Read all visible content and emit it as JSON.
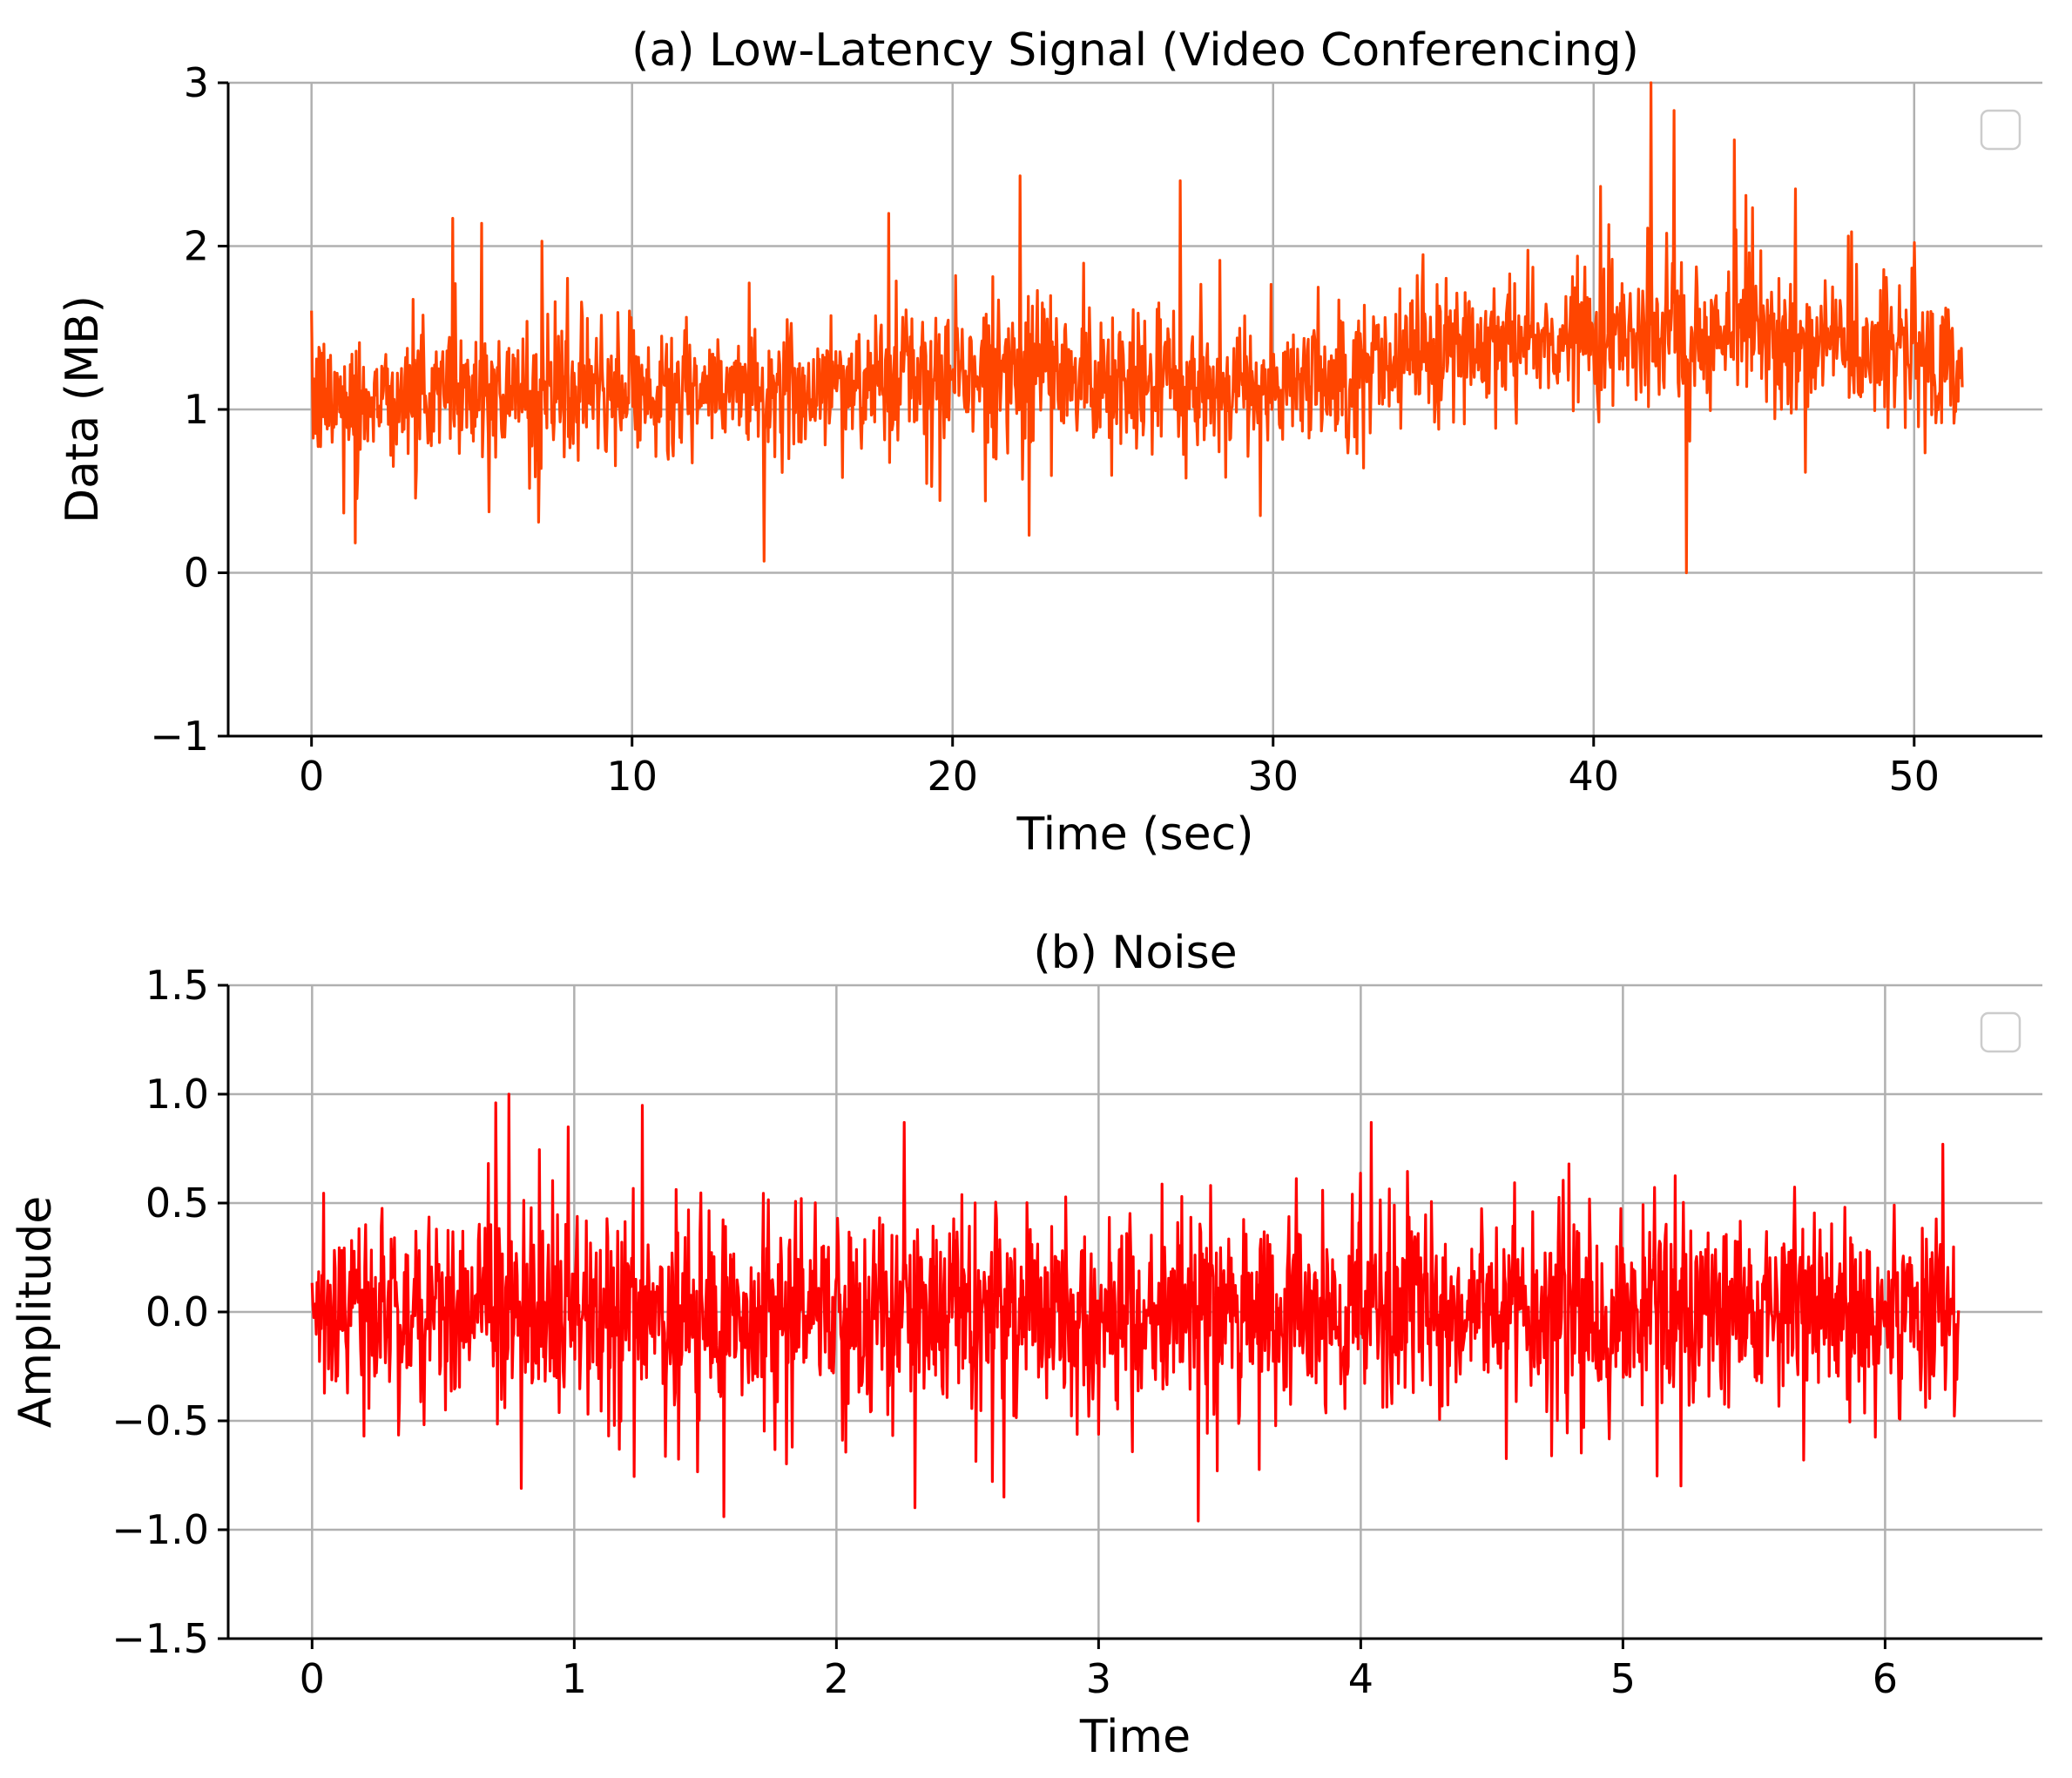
{
  "chart_data": [
    {
      "type": "line",
      "title": "(a) Low-Latency Signal (Video Conferencing)",
      "xlabel": "Time (sec)",
      "ylabel": "Data (MB)",
      "xlim": [
        -2.6,
        54.0
      ],
      "ylim": [
        -1,
        3
      ],
      "xticks": [
        0,
        10,
        20,
        30,
        40,
        50
      ],
      "yticks": [
        -1,
        0,
        1,
        2,
        3
      ],
      "xtick_labels": [
        "0",
        "10",
        "20",
        "30",
        "40",
        "50"
      ],
      "ytick_labels": [
        "−1",
        "0",
        "1",
        "2",
        "3"
      ],
      "grid": true,
      "legend": "top-right (empty)",
      "color": "#ff4500",
      "x_range": [
        0.0,
        51.5
      ],
      "series": [
        {
          "points": 2000,
          "trend_x": [
            0,
            5,
            10,
            15,
            20,
            25,
            30,
            35,
            40,
            45,
            51.5
          ],
          "trend_y": [
            1.05,
            1.12,
            1.08,
            1.12,
            1.22,
            1.18,
            1.12,
            1.38,
            1.48,
            1.45,
            1.3
          ],
          "noise_sd": 0.2,
          "spikes": [
            [
              4.4,
              2.17
            ],
            [
              5.3,
              2.14
            ],
            [
              7.2,
              2.03
            ],
            [
              18.0,
              2.2
            ],
            [
              22.1,
              2.43
            ],
            [
              22.4,
              0.23
            ],
            [
              27.1,
              2.4
            ],
            [
              29.6,
              0.35
            ],
            [
              41.8,
              3.0
            ],
            [
              42.9,
              0.0
            ],
            [
              42.5,
              2.83
            ],
            [
              44.4,
              2.65
            ],
            [
              46.3,
              2.35
            ]
          ]
        }
      ]
    },
    {
      "type": "line",
      "title": "(b) Noise",
      "xlabel": "Time",
      "ylabel": "Amplitude",
      "xlim": [
        -0.32,
        6.6
      ],
      "ylim": [
        -1.5,
        1.5
      ],
      "xticks": [
        0,
        1,
        2,
        3,
        4,
        5,
        6
      ],
      "yticks": [
        -1.5,
        -1.0,
        -0.5,
        0.0,
        0.5,
        1.0,
        1.5
      ],
      "xtick_labels": [
        "0",
        "1",
        "2",
        "3",
        "4",
        "5",
        "6"
      ],
      "ytick_labels": [
        "−1.5",
        "−1.0",
        "−0.5",
        "0.0",
        "0.5",
        "1.0",
        "1.5"
      ],
      "grid": true,
      "legend": "top-right (empty)",
      "color": "#ff0000",
      "x_range": [
        0.0,
        6.28
      ],
      "series": [
        {
          "points": 2000,
          "trend_x": [
            0,
            6.28
          ],
          "trend_y": [
            0.0,
            0.0
          ],
          "noise_sd": 0.22,
          "spikes": [
            [
              0.7,
              0.96
            ],
            [
              0.75,
              1.0
            ],
            [
              1.57,
              -0.94
            ],
            [
              2.26,
              0.87
            ],
            [
              2.64,
              -0.85
            ],
            [
              3.38,
              -0.96
            ],
            [
              4.04,
              0.87
            ],
            [
              6.22,
              0.77
            ]
          ]
        }
      ]
    }
  ]
}
